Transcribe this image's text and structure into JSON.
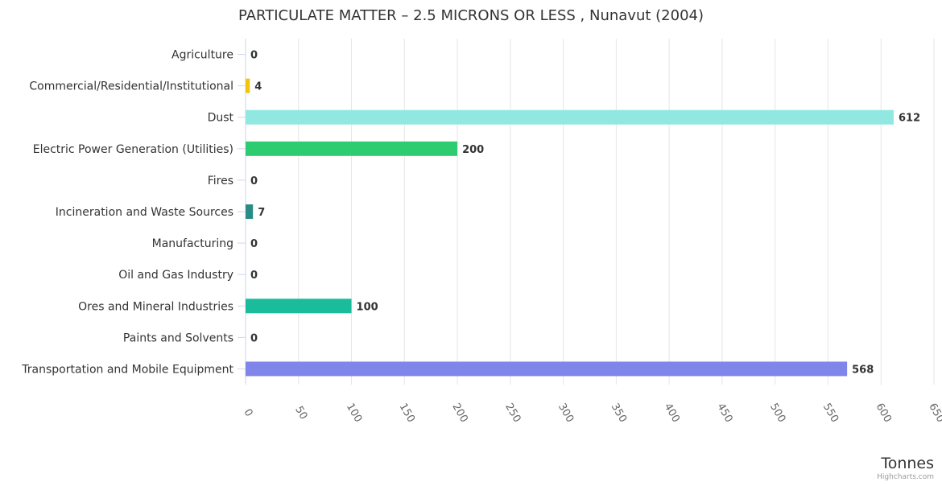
{
  "chart_data": {
    "type": "bar",
    "orientation": "horizontal",
    "title": "PARTICULATE MATTER – 2.5 MICRONS OR LESS , Nunavut (2004)",
    "categories": [
      "Agriculture",
      "Commercial/Residential/Institutional",
      "Dust",
      "Electric Power Generation (Utilities)",
      "Fires",
      "Incineration and Waste Sources",
      "Manufacturing",
      "Oil and Gas Industry",
      "Ores and Mineral Industries",
      "Paints and Solvents",
      "Transportation and Mobile Equipment"
    ],
    "values": [
      0,
      4,
      612,
      200,
      0,
      7,
      0,
      0,
      100,
      0,
      568
    ],
    "colors": [
      "#2f7ed8",
      "#f1c40f",
      "#91e8e1",
      "#2ecc71",
      "#8e44ad",
      "#2a8c86",
      "#7cb5ec",
      "#434348",
      "#1abc9c",
      "#f45b5b",
      "#8085e9"
    ],
    "xlim": [
      0,
      650
    ],
    "ticks": [
      0,
      50,
      100,
      150,
      200,
      250,
      300,
      350,
      400,
      450,
      500,
      550,
      600,
      650
    ],
    "xlabel": "Tonnes",
    "grid": true,
    "legend": "none"
  },
  "credits": "Highcharts.com"
}
